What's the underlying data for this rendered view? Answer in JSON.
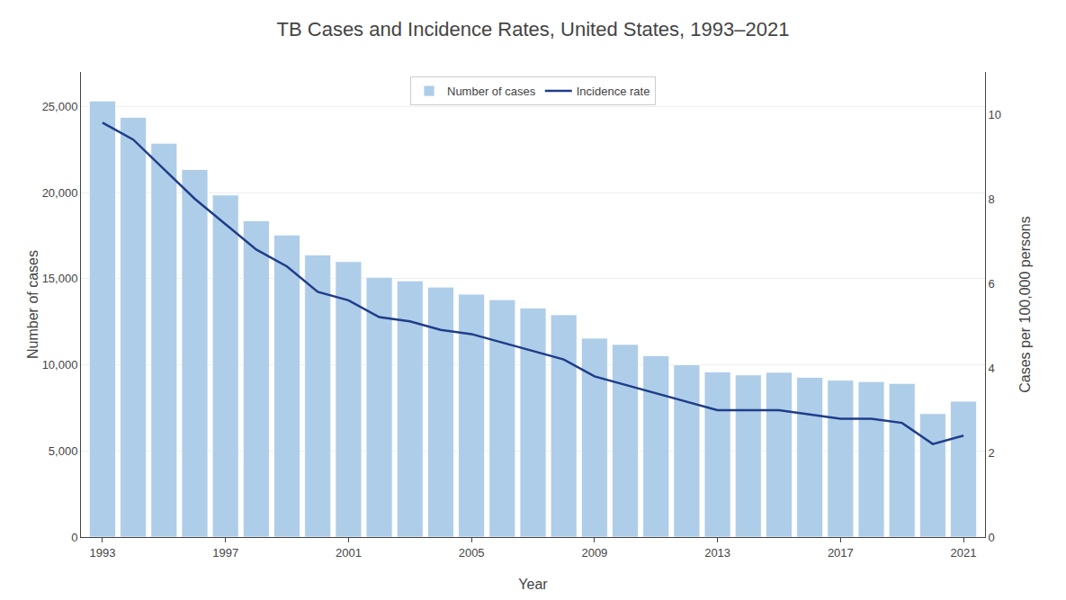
{
  "chart_data": {
    "type": "bar",
    "title": "TB Cases and Incidence Rates, United States, 1993–2021",
    "xlabel": "Year",
    "ylabel": "Number of cases",
    "y2label": "Cases per 100,000 persons",
    "x": [
      1993,
      1994,
      1995,
      1996,
      1997,
      1998,
      1999,
      2000,
      2001,
      2002,
      2003,
      2004,
      2005,
      2006,
      2007,
      2008,
      2009,
      2010,
      2011,
      2012,
      2013,
      2014,
      2015,
      2016,
      2017,
      2018,
      2019,
      2020,
      2021
    ],
    "series": [
      {
        "name": "Number of cases",
        "type": "bar",
        "color": "#AECDE8",
        "values": [
          25313,
          24361,
          22860,
          21337,
          19855,
          18361,
          17531,
          16377,
          15989,
          15078,
          14871,
          14511,
          14097,
          13779,
          13293,
          12904,
          11545,
          11182,
          10528,
          10000,
          9588,
          9412,
          9563,
          9272,
          9105,
          9025,
          8916,
          7163,
          7882
        ]
      },
      {
        "name": "Incidence rate",
        "type": "line",
        "color": "#1F3D8A",
        "axis": "y2",
        "values": [
          9.8,
          9.4,
          8.7,
          8.0,
          7.4,
          6.8,
          6.4,
          5.8,
          5.6,
          5.2,
          5.1,
          4.9,
          4.8,
          4.6,
          4.4,
          4.2,
          3.8,
          3.6,
          3.4,
          3.2,
          3.0,
          3.0,
          3.0,
          2.9,
          2.8,
          2.8,
          2.7,
          2.2,
          2.4
        ]
      }
    ],
    "xlim": [
      1992.3,
      2021.7
    ],
    "xticks": [
      1993,
      1997,
      2001,
      2005,
      2009,
      2013,
      2017,
      2021
    ],
    "ylim": [
      0,
      27000
    ],
    "yticks": [
      0,
      {
        "value": 5000,
        "label": "5,000"
      },
      {
        "value": 10000,
        "label": "10,000"
      },
      {
        "value": 15000,
        "label": "15,000"
      },
      {
        "value": 20000,
        "label": "20,000"
      },
      {
        "value": 25000,
        "label": "25,000"
      }
    ],
    "y2lim": [
      0,
      11.0
    ],
    "y2ticks": [
      0,
      2,
      4,
      6,
      8,
      10
    ],
    "grid": true,
    "legend": "upper center"
  }
}
